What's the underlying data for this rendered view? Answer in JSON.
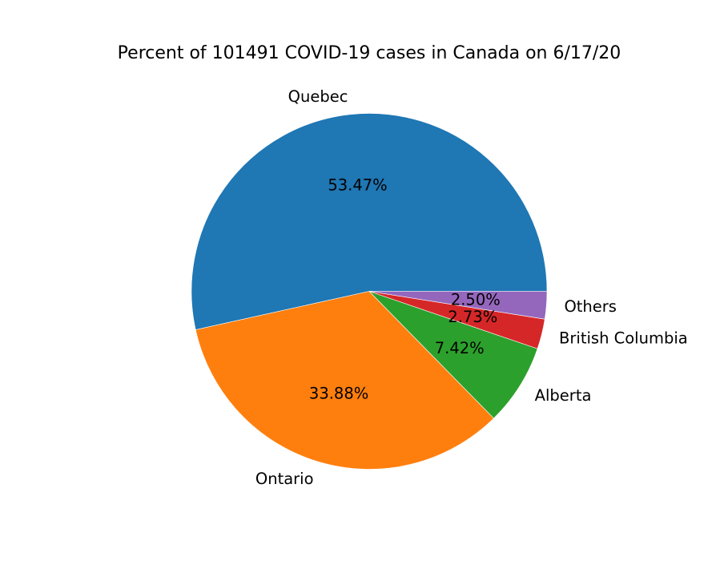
{
  "chart_data": {
    "type": "pie",
    "title": "Percent of 101491 COVID-19 cases in Canada on 6/17/20",
    "start_angle_deg": 0,
    "direction": "counterclockwise",
    "slices": [
      {
        "label": "Quebec",
        "value": 53.47,
        "pct_label": "53.47%",
        "color": "#1f77b4"
      },
      {
        "label": "Ontario",
        "value": 33.88,
        "pct_label": "33.88%",
        "color": "#ff7f0e"
      },
      {
        "label": "Alberta",
        "value": 7.42,
        "pct_label": "7.42%",
        "color": "#2ca02c"
      },
      {
        "label": "British Columbia",
        "value": 2.73,
        "pct_label": "2.73%",
        "color": "#d62728"
      },
      {
        "label": "Others",
        "value": 2.5,
        "pct_label": "2.50%",
        "color": "#9467bd"
      }
    ]
  }
}
